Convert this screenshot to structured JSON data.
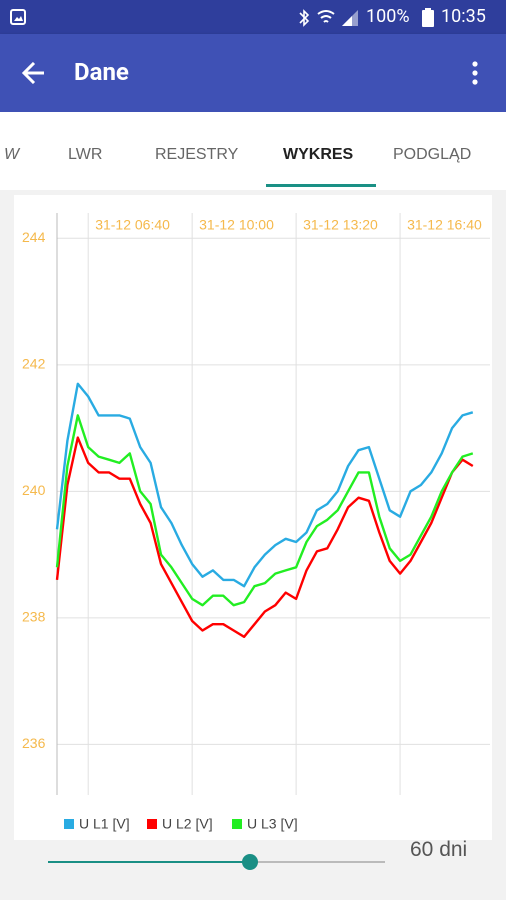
{
  "status_bar": {
    "battery": "100%",
    "time": "10:35"
  },
  "app_bar": {
    "title": "Dane"
  },
  "tabs": [
    "W",
    "LWR",
    "REJESTRY",
    "WYKRES",
    "PODGLĄD"
  ],
  "chart_data": {
    "type": "line",
    "x": [
      340,
      360,
      380,
      400,
      420,
      440,
      460,
      480,
      500,
      520,
      540,
      560,
      580,
      600,
      620,
      640,
      660,
      680,
      700,
      720,
      740,
      760,
      780,
      800,
      820,
      840,
      860,
      880,
      900,
      920,
      940,
      960,
      980,
      1000,
      1020,
      1040,
      1060,
      1080,
      1100,
      1120,
      1140
    ],
    "xlim": [
      340,
      1173
    ],
    "xticks": [
      {
        "value": 400,
        "label": "31-12 06:40"
      },
      {
        "value": 600,
        "label": "31-12 10:00"
      },
      {
        "value": 800,
        "label": "31-12 13:20"
      },
      {
        "value": 1000,
        "label": "31-12 16:40"
      }
    ],
    "ylim": [
      235.2,
      244.4
    ],
    "yticks": [
      236,
      238,
      240,
      242,
      244
    ],
    "grid": true,
    "series": [
      {
        "name": "U L1 [V]",
        "color": "#29abe2",
        "values": [
          239.4,
          240.8,
          241.7,
          241.5,
          241.2,
          241.2,
          241.2,
          241.15,
          240.7,
          240.45,
          239.75,
          239.5,
          239.15,
          238.85,
          238.65,
          238.75,
          238.6,
          238.6,
          238.5,
          238.8,
          239.0,
          239.15,
          239.25,
          239.2,
          239.35,
          239.7,
          239.8,
          240.0,
          240.4,
          240.65,
          240.7,
          240.2,
          239.7,
          239.6,
          240.0,
          240.1,
          240.3,
          240.6,
          241.0,
          241.2,
          241.25
        ]
      },
      {
        "name": "U L2 [V]",
        "color": "#ff0000",
        "values": [
          238.6,
          240.1,
          240.85,
          240.45,
          240.3,
          240.3,
          240.2,
          240.2,
          239.8,
          239.5,
          238.85,
          238.55,
          238.25,
          237.95,
          237.8,
          237.9,
          237.9,
          237.8,
          237.7,
          237.9,
          238.1,
          238.2,
          238.4,
          238.3,
          238.75,
          239.05,
          239.1,
          239.4,
          239.75,
          239.9,
          239.85,
          239.35,
          238.9,
          238.7,
          238.9,
          239.2,
          239.5,
          239.9,
          240.3,
          240.5,
          240.4
        ]
      },
      {
        "name": "U L3 [V]",
        "color": "#22ee22",
        "values": [
          238.8,
          240.4,
          241.2,
          240.7,
          240.55,
          240.5,
          240.45,
          240.6,
          240.0,
          239.8,
          239.0,
          238.8,
          238.55,
          238.3,
          238.2,
          238.35,
          238.35,
          238.2,
          238.25,
          238.5,
          238.55,
          238.7,
          238.75,
          238.8,
          239.2,
          239.45,
          239.55,
          239.7,
          240.0,
          240.3,
          240.3,
          239.6,
          239.1,
          238.9,
          239.0,
          239.3,
          239.6,
          240.0,
          240.3,
          240.55,
          240.6
        ]
      }
    ]
  },
  "slider": {
    "label": "60 dni"
  }
}
